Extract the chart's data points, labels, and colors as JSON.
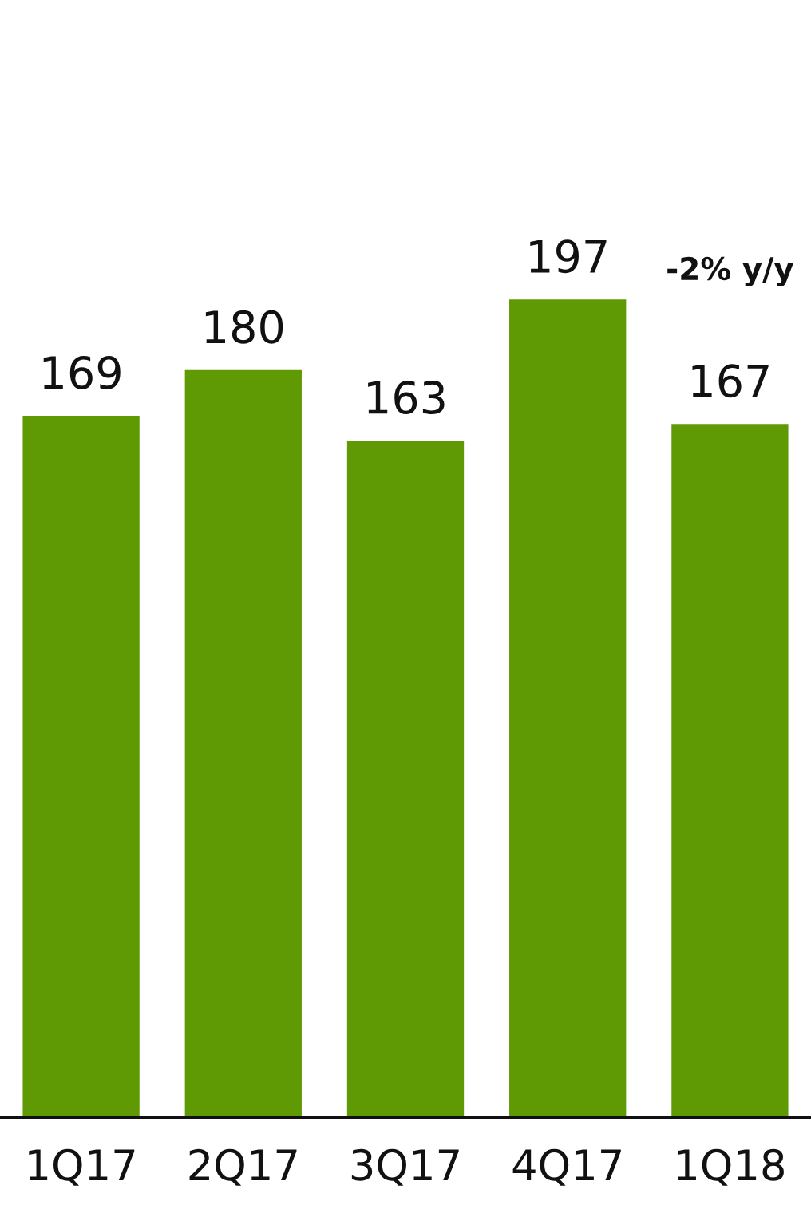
{
  "chart_data": {
    "type": "bar",
    "categories": [
      "1Q17",
      "2Q17",
      "3Q17",
      "4Q17",
      "1Q18"
    ],
    "values": [
      169,
      180,
      163,
      197,
      167
    ],
    "color": "#5f9a05",
    "tick_labels": "x",
    "data_labels": true,
    "grid": false,
    "annotations": [
      "-2% y/y"
    ]
  }
}
